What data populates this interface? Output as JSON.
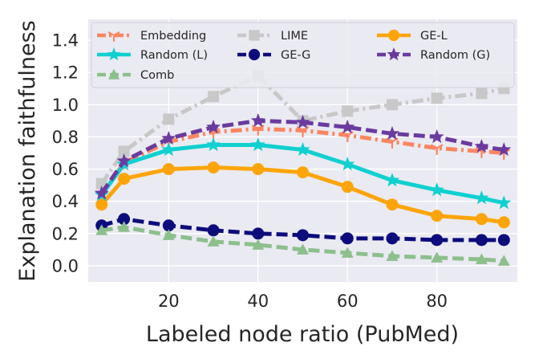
{
  "chart_data": {
    "type": "line",
    "title": "",
    "xlabel": "Labeled node ratio (PubMed)",
    "ylabel": "Explanation faithfulness",
    "xlim": [
      2,
      98
    ],
    "ylim": [
      -0.1,
      1.53
    ],
    "xticks": [
      20,
      40,
      60,
      80
    ],
    "yticks": [
      0.0,
      0.2,
      0.4,
      0.6,
      0.8,
      1.0,
      1.2,
      1.4
    ],
    "ytick_labels": [
      "0.0",
      "0.2",
      "0.4",
      "0.6",
      "0.8",
      "1.0",
      "1.2",
      "1.4"
    ],
    "grid": true,
    "legend": "top, 3 columns",
    "x": [
      5,
      10,
      20,
      30,
      40,
      50,
      60,
      70,
      80,
      90,
      95
    ],
    "series": [
      {
        "name": "Embedding",
        "color": "#fb8661",
        "dash": "dashdot",
        "marker": "tri_down",
        "values": [
          0.44,
          0.64,
          0.77,
          0.83,
          0.85,
          0.84,
          0.81,
          0.77,
          0.73,
          0.71,
          0.7
        ]
      },
      {
        "name": "LIME",
        "color": "#c8c8c8",
        "dash": "dashdot",
        "marker": "square",
        "values": [
          0.51,
          0.71,
          0.91,
          1.05,
          1.18,
          0.9,
          0.96,
          1.0,
          1.04,
          1.07,
          1.1
        ]
      },
      {
        "name": "GE-L",
        "color": "#fca50a",
        "dash": "solid",
        "marker": "circle",
        "values": [
          0.38,
          0.54,
          0.6,
          0.61,
          0.6,
          0.58,
          0.49,
          0.38,
          0.31,
          0.29,
          0.27
        ]
      },
      {
        "name": "Random (L)",
        "color": "#10d0d0",
        "dash": "solid",
        "marker": "star",
        "values": [
          0.44,
          0.63,
          0.72,
          0.75,
          0.75,
          0.72,
          0.63,
          0.53,
          0.47,
          0.42,
          0.39
        ]
      },
      {
        "name": "GE-G",
        "color": "#0d0c7c",
        "dash": "dashed",
        "marker": "circle",
        "values": [
          0.25,
          0.29,
          0.25,
          0.22,
          0.2,
          0.19,
          0.17,
          0.17,
          0.16,
          0.16,
          0.16
        ]
      },
      {
        "name": "Random (G)",
        "color": "#6a3b9f",
        "dash": "dashed",
        "marker": "star",
        "values": [
          0.45,
          0.65,
          0.79,
          0.86,
          0.9,
          0.89,
          0.86,
          0.82,
          0.8,
          0.74,
          0.72
        ]
      },
      {
        "name": "Comb",
        "color": "#8dbf8d",
        "dash": "dashed",
        "marker": "triangle_up",
        "values": [
          0.22,
          0.24,
          0.19,
          0.15,
          0.13,
          0.1,
          0.08,
          0.06,
          0.05,
          0.04,
          0.03
        ]
      }
    ]
  }
}
